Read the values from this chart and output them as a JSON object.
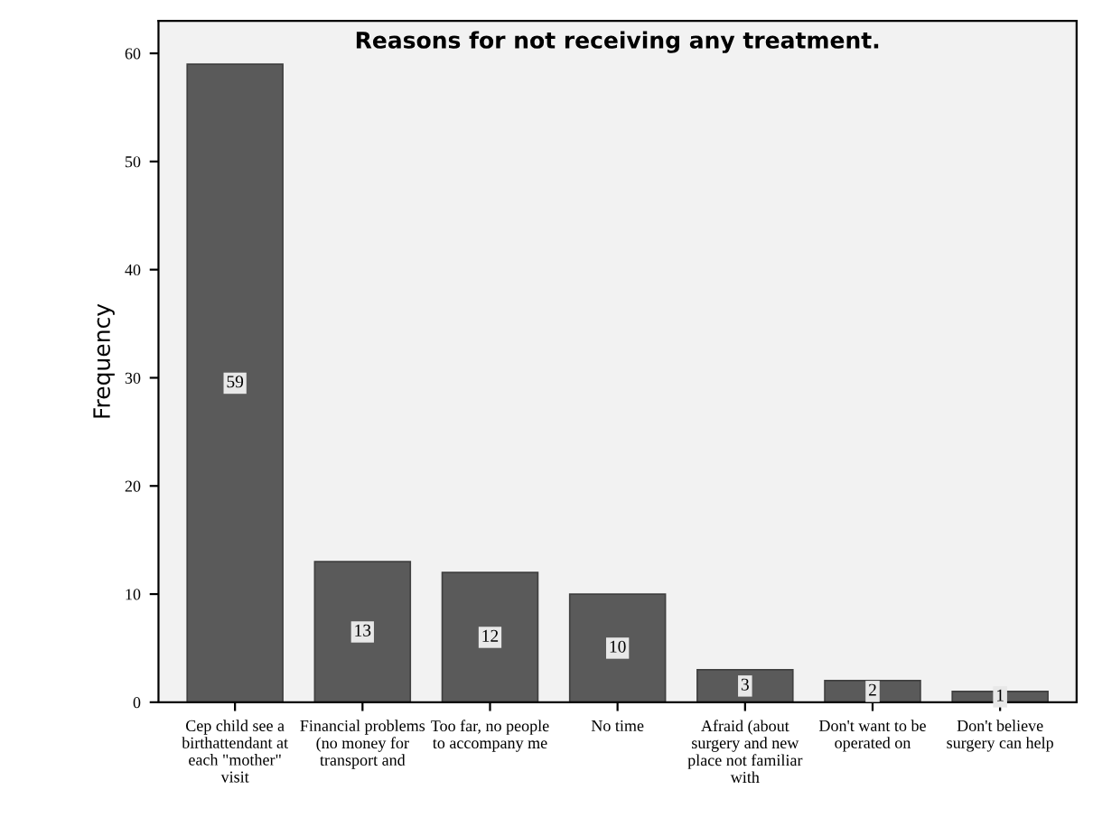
{
  "chart_data": {
    "type": "bar",
    "title": "Reasons for not receiving any treatment.",
    "ylabel": "Frequency",
    "categories": [
      "Cep child see a birthattendant at each \"mother\" visit",
      "Financial problems (no money for transport and",
      "Too far, no people to accompany me",
      "No time",
      "Afraid (about surgery and new place not familiar with",
      "Don't want to be operated on",
      "Don't believe surgery can help"
    ],
    "values": [
      59,
      13,
      12,
      10,
      3,
      2,
      1
    ],
    "color": "#5a5a5a",
    "data_labels": true,
    "ylim": [
      0,
      63
    ],
    "yticks": [
      0,
      10,
      20,
      30,
      40,
      50,
      60
    ],
    "grid": false,
    "legend": false
  }
}
